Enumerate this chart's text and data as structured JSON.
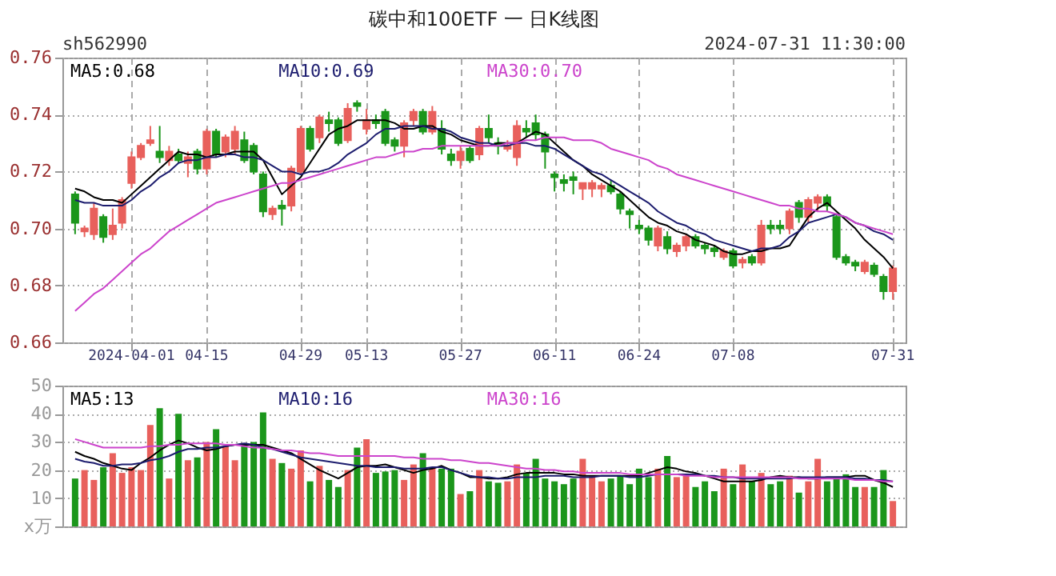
{
  "chart_data": [
    {
      "type": "candlestick",
      "title": "碳中和100ETF 一 日K线图",
      "annotations": [
        "sh562990",
        "2024-07-31 11:30:00"
      ],
      "categories": [
        null,
        null,
        null,
        null,
        null,
        null,
        "2024-04-01",
        null,
        null,
        null,
        null,
        null,
        null,
        null,
        "04-15",
        null,
        null,
        null,
        null,
        null,
        null,
        null,
        null,
        null,
        "04-29",
        null,
        null,
        null,
        null,
        null,
        null,
        "05-13",
        null,
        null,
        null,
        null,
        null,
        null,
        null,
        null,
        null,
        "05-27",
        null,
        null,
        null,
        null,
        null,
        null,
        null,
        null,
        null,
        "06-11",
        null,
        null,
        null,
        null,
        null,
        null,
        null,
        null,
        "06-24",
        null,
        null,
        null,
        null,
        null,
        null,
        null,
        null,
        null,
        "07-08",
        null,
        null,
        null,
        null,
        null,
        null,
        null,
        null,
        null,
        null,
        null,
        null,
        null,
        null,
        null,
        null,
        "07-31"
      ],
      "ohlc": [
        [
          0.712,
          0.713,
          0.698,
          0.702
        ],
        [
          0.699,
          0.701,
          0.697,
          0.7
        ],
        [
          0.698,
          0.709,
          0.696,
          0.707
        ],
        [
          0.704,
          0.705,
          0.695,
          0.697
        ],
        [
          0.698,
          0.707,
          0.696,
          0.701
        ],
        [
          0.702,
          0.711,
          0.7,
          0.71
        ],
        [
          0.716,
          0.727,
          0.714,
          0.725
        ],
        [
          0.725,
          0.73,
          0.724,
          0.729
        ],
        [
          0.73,
          0.736,
          0.729,
          0.731
        ],
        [
          0.727,
          0.736,
          0.723,
          0.725
        ],
        [
          0.724,
          0.729,
          0.722,
          0.727
        ],
        [
          0.726,
          0.728,
          0.723,
          0.724
        ],
        [
          0.723,
          0.727,
          0.718,
          0.725
        ],
        [
          0.727,
          0.728,
          0.719,
          0.721
        ],
        [
          0.721,
          0.735,
          0.719,
          0.734
        ],
        [
          0.734,
          0.735,
          0.725,
          0.726
        ],
        [
          0.727,
          0.733,
          0.725,
          0.732
        ],
        [
          0.728,
          0.736,
          0.726,
          0.734
        ],
        [
          0.731,
          0.734,
          0.723,
          0.724
        ],
        [
          0.729,
          0.73,
          0.719,
          0.72
        ],
        [
          0.719,
          0.72,
          0.704,
          0.706
        ],
        [
          0.705,
          0.708,
          0.703,
          0.707
        ],
        [
          0.708,
          0.71,
          0.701,
          0.707
        ],
        [
          0.708,
          0.722,
          0.706,
          0.721
        ],
        [
          0.72,
          0.736,
          0.719,
          0.735
        ],
        [
          0.735,
          0.736,
          0.727,
          0.728
        ],
        [
          0.732,
          0.74,
          0.73,
          0.739
        ],
        [
          0.738,
          0.741,
          0.734,
          0.737
        ],
        [
          0.738,
          0.739,
          0.729,
          0.73
        ],
        [
          0.731,
          0.744,
          0.73,
          0.742
        ],
        [
          0.744,
          0.745,
          0.741,
          0.743
        ],
        [
          0.735,
          0.742,
          0.733,
          0.738
        ],
        [
          0.738,
          0.74,
          0.735,
          0.737
        ],
        [
          0.741,
          0.742,
          0.729,
          0.73
        ],
        [
          0.731,
          0.732,
          0.727,
          0.729
        ],
        [
          0.729,
          0.738,
          0.725,
          0.737
        ],
        [
          0.738,
          0.742,
          0.736,
          0.741
        ],
        [
          0.741,
          0.742,
          0.733,
          0.734
        ],
        [
          0.734,
          0.743,
          0.733,
          0.741
        ],
        [
          0.735,
          0.738,
          0.726,
          0.728
        ],
        [
          0.726,
          0.728,
          0.722,
          0.724
        ],
        [
          0.724,
          0.729,
          0.721,
          0.727
        ],
        [
          0.728,
          0.729,
          0.723,
          0.724
        ],
        [
          0.726,
          0.736,
          0.724,
          0.735
        ],
        [
          0.735,
          0.74,
          0.73,
          0.732
        ],
        [
          0.73,
          0.732,
          0.726,
          0.729
        ],
        [
          0.728,
          0.731,
          0.727,
          0.729
        ],
        [
          0.725,
          0.738,
          0.722,
          0.736
        ],
        [
          0.735,
          0.738,
          0.732,
          0.734
        ],
        [
          0.737,
          0.74,
          0.731,
          0.733
        ],
        [
          0.733,
          0.734,
          0.721,
          0.727
        ],
        [
          0.719,
          0.72,
          0.713,
          0.718
        ],
        [
          0.717,
          0.719,
          0.713,
          0.716
        ],
        [
          0.718,
          0.72,
          0.712,
          0.717
        ],
        [
          0.714,
          0.716,
          0.71,
          0.716
        ],
        [
          0.714,
          0.717,
          0.711,
          0.716
        ],
        [
          0.714,
          0.716,
          0.711,
          0.715
        ],
        [
          0.715,
          0.717,
          0.712,
          0.713
        ],
        [
          0.712,
          0.713,
          0.705,
          0.707
        ],
        [
          0.706,
          0.707,
          0.7,
          0.705
        ],
        [
          0.701,
          0.703,
          0.698,
          0.7
        ],
        [
          0.7,
          0.701,
          0.694,
          0.696
        ],
        [
          0.694,
          0.701,
          0.692,
          0.7
        ],
        [
          0.697,
          0.699,
          0.691,
          0.693
        ],
        [
          0.692,
          0.695,
          0.69,
          0.694
        ],
        [
          0.694,
          0.698,
          0.692,
          0.697
        ],
        [
          0.697,
          0.698,
          0.693,
          0.694
        ],
        [
          0.694,
          0.695,
          0.691,
          0.693
        ],
        [
          0.693,
          0.694,
          0.69,
          0.692
        ],
        [
          0.69,
          0.693,
          0.689,
          0.692
        ],
        [
          0.692,
          0.693,
          0.686,
          0.687
        ],
        [
          0.688,
          0.69,
          0.686,
          0.689
        ],
        [
          0.69,
          0.691,
          0.687,
          0.688
        ],
        [
          0.688,
          0.703,
          0.687,
          0.701
        ],
        [
          0.701,
          0.703,
          0.698,
          0.7
        ],
        [
          0.701,
          0.703,
          0.698,
          0.7
        ],
        [
          0.7,
          0.707,
          0.698,
          0.706
        ],
        [
          0.709,
          0.71,
          0.702,
          0.704
        ],
        [
          0.704,
          0.711,
          0.702,
          0.71
        ],
        [
          0.709,
          0.712,
          0.706,
          0.711
        ],
        [
          0.711,
          0.712,
          0.706,
          0.708
        ],
        [
          0.704,
          0.705,
          0.689,
          0.69
        ],
        [
          0.69,
          0.691,
          0.687,
          0.688
        ],
        [
          0.688,
          0.689,
          0.685,
          0.687
        ],
        [
          0.685,
          0.689,
          0.684,
          0.688
        ],
        [
          0.687,
          0.688,
          0.683,
          0.684
        ],
        [
          0.683,
          0.684,
          0.675,
          0.678
        ],
        [
          0.678,
          0.687,
          0.675,
          0.686
        ]
      ],
      "colors": [
        "#1b961b",
        "#e8605c",
        "#e8605c",
        "#1b961b",
        "#e8605c",
        "#e8605c",
        "#e8605c",
        "#e8605c",
        "#e8605c",
        "#1b961b",
        "#e8605c",
        "#1b961b",
        "#e8605c",
        "#1b961b",
        "#e8605c",
        "#1b961b",
        "#e8605c",
        "#e8605c",
        "#1b961b",
        "#1b961b",
        "#1b961b",
        "#e8605c",
        "#1b961b",
        "#e8605c",
        "#e8605c",
        "#1b961b",
        "#e8605c",
        "#1b961b",
        "#1b961b",
        "#e8605c",
        "#1b961b",
        "#e8605c",
        "#1b961b",
        "#1b961b",
        "#1b961b",
        "#e8605c",
        "#e8605c",
        "#1b961b",
        "#e8605c",
        "#1b961b",
        "#1b961b",
        "#e8605c",
        "#1b961b",
        "#e8605c",
        "#1b961b",
        "#1b961b",
        "#e8605c",
        "#e8605c",
        "#1b961b",
        "#1b961b",
        "#1b961b",
        "#1b961b",
        "#1b961b",
        "#1b961b",
        "#e8605c",
        "#e8605c",
        "#e8605c",
        "#1b961b",
        "#1b961b",
        "#1b961b",
        "#1b961b",
        "#1b961b",
        "#e8605c",
        "#1b961b",
        "#e8605c",
        "#e8605c",
        "#1b961b",
        "#1b961b",
        "#1b961b",
        "#e8605c",
        "#1b961b",
        "#e8605c",
        "#1b961b",
        "#e8605c",
        "#1b961b",
        "#1b961b",
        "#e8605c",
        "#1b961b",
        "#e8605c",
        "#e8605c",
        "#1b961b",
        "#1b961b",
        "#1b961b",
        "#1b961b",
        "#e8605c",
        "#1b961b",
        "#1b961b",
        "#e8605c"
      ],
      "series": [
        {
          "name": "MA5:0.68",
          "type": "line",
          "color": "#000000",
          "values": [
            0.714,
            0.713,
            0.711,
            0.71,
            0.71,
            0.709,
            0.712,
            0.715,
            0.718,
            0.721,
            0.724,
            0.727,
            0.726,
            0.726,
            0.725,
            0.726,
            0.726,
            0.727,
            0.727,
            0.727,
            0.724,
            0.718,
            0.712,
            0.715,
            0.718,
            0.723,
            0.728,
            0.733,
            0.735,
            0.736,
            0.738,
            0.738,
            0.738,
            0.738,
            0.737,
            0.735,
            0.735,
            0.736,
            0.736,
            0.734,
            0.733,
            0.731,
            0.73,
            0.729,
            0.729,
            0.73,
            0.73,
            0.73,
            0.732,
            0.734,
            0.733,
            0.73,
            0.727,
            0.724,
            0.722,
            0.719,
            0.717,
            0.715,
            0.713,
            0.71,
            0.707,
            0.704,
            0.702,
            0.701,
            0.699,
            0.698,
            0.696,
            0.695,
            0.694,
            0.692,
            0.691,
            0.691,
            0.692,
            0.692,
            0.693,
            0.693,
            0.694,
            0.699,
            0.704,
            0.707,
            0.709,
            0.706,
            0.703,
            0.7,
            0.696,
            0.693,
            0.69,
            0.686
          ]
        },
        {
          "name": "MA10:0.69",
          "type": "line",
          "color": "#1c1c6e",
          "values": [
            0.71,
            0.709,
            0.709,
            0.708,
            0.708,
            0.708,
            0.71,
            0.713,
            0.715,
            0.718,
            0.72,
            0.723,
            0.724,
            0.724,
            0.725,
            0.725,
            0.726,
            0.726,
            0.725,
            0.725,
            0.724,
            0.722,
            0.72,
            0.72,
            0.719,
            0.72,
            0.72,
            0.721,
            0.723,
            0.726,
            0.728,
            0.73,
            0.733,
            0.735,
            0.735,
            0.736,
            0.736,
            0.736,
            0.735,
            0.735,
            0.734,
            0.732,
            0.731,
            0.73,
            0.73,
            0.729,
            0.729,
            0.73,
            0.73,
            0.729,
            0.729,
            0.728,
            0.726,
            0.724,
            0.722,
            0.72,
            0.719,
            0.717,
            0.715,
            0.713,
            0.711,
            0.709,
            0.706,
            0.704,
            0.702,
            0.701,
            0.699,
            0.698,
            0.696,
            0.695,
            0.694,
            0.693,
            0.692,
            0.693,
            0.693,
            0.694,
            0.697,
            0.699,
            0.702,
            0.703,
            0.704,
            0.705,
            0.704,
            0.702,
            0.701,
            0.699,
            0.698,
            0.696
          ]
        },
        {
          "name": "MA30:0.70",
          "type": "line",
          "color": "#cc44cc",
          "values": [
            0.671,
            0.674,
            0.677,
            0.679,
            0.682,
            0.685,
            0.688,
            0.691,
            0.693,
            0.696,
            0.699,
            0.701,
            0.703,
            0.705,
            0.707,
            0.709,
            0.71,
            0.711,
            0.712,
            0.713,
            0.714,
            0.715,
            0.716,
            0.716,
            0.717,
            0.718,
            0.719,
            0.72,
            0.721,
            0.722,
            0.723,
            0.724,
            0.725,
            0.725,
            0.726,
            0.727,
            0.727,
            0.728,
            0.728,
            0.729,
            0.729,
            0.729,
            0.729,
            0.729,
            0.729,
            0.729,
            0.73,
            0.73,
            0.731,
            0.731,
            0.732,
            0.732,
            0.732,
            0.731,
            0.731,
            0.731,
            0.73,
            0.728,
            0.727,
            0.726,
            0.725,
            0.724,
            0.722,
            0.721,
            0.719,
            0.718,
            0.717,
            0.716,
            0.715,
            0.714,
            0.713,
            0.712,
            0.711,
            0.71,
            0.709,
            0.708,
            0.708,
            0.707,
            0.707,
            0.706,
            0.706,
            0.705,
            0.704,
            0.702,
            0.701,
            0.7,
            0.699,
            0.698
          ]
        }
      ],
      "ylim": [
        0.66,
        0.76
      ],
      "yticks": [
        {
          "value": 0.66,
          "label": "0.66"
        },
        {
          "value": 0.68,
          "label": "0.68"
        },
        {
          "value": 0.7,
          "label": "0.70"
        },
        {
          "value": 0.72,
          "label": "0.72"
        },
        {
          "value": 0.74,
          "label": "0.74"
        },
        {
          "value": 0.76,
          "label": "0.76"
        }
      ],
      "grid": true,
      "legend": "top left"
    },
    {
      "type": "bar",
      "categories": [
        null,
        null,
        null,
        null,
        null,
        null,
        null,
        null,
        null,
        null,
        null,
        null,
        null,
        null,
        null,
        null,
        null,
        null,
        null,
        null,
        null,
        null,
        null,
        null,
        null,
        null,
        null,
        null,
        null,
        null,
        null,
        null,
        null,
        null,
        null,
        null,
        null,
        null,
        null,
        null,
        null,
        null,
        null,
        null,
        null,
        null,
        null,
        null,
        null,
        null,
        null,
        null,
        null,
        null,
        null,
        null,
        null,
        null,
        null,
        null,
        null,
        null,
        null,
        null,
        null,
        null,
        null,
        null,
        null,
        null,
        null,
        null,
        null,
        null,
        null,
        null,
        null,
        null,
        null,
        null,
        null,
        null,
        null,
        null,
        null,
        null,
        null,
        null
      ],
      "series": [
        {
          "type": "bar",
          "colors": [
            "#1b961b",
            "#e8605c",
            "#e8605c",
            "#1b961b",
            "#e8605c",
            "#e8605c",
            "#e8605c",
            "#e8605c",
            "#e8605c",
            "#1b961b",
            "#e8605c",
            "#1b961b",
            "#e8605c",
            "#1b961b",
            "#e8605c",
            "#1b961b",
            "#e8605c",
            "#e8605c",
            "#1b961b",
            "#1b961b",
            "#1b961b",
            "#e8605c",
            "#1b961b",
            "#e8605c",
            "#e8605c",
            "#1b961b",
            "#e8605c",
            "#1b961b",
            "#1b961b",
            "#e8605c",
            "#1b961b",
            "#e8605c",
            "#1b961b",
            "#1b961b",
            "#1b961b",
            "#e8605c",
            "#e8605c",
            "#1b961b",
            "#e8605c",
            "#1b961b",
            "#1b961b",
            "#e8605c",
            "#1b961b",
            "#e8605c",
            "#1b961b",
            "#1b961b",
            "#e8605c",
            "#e8605c",
            "#1b961b",
            "#1b961b",
            "#1b961b",
            "#1b961b",
            "#1b961b",
            "#1b961b",
            "#e8605c",
            "#e8605c",
            "#e8605c",
            "#1b961b",
            "#1b961b",
            "#1b961b",
            "#1b961b",
            "#1b961b",
            "#e8605c",
            "#1b961b",
            "#e8605c",
            "#e8605c",
            "#1b961b",
            "#1b961b",
            "#1b961b",
            "#e8605c",
            "#1b961b",
            "#e8605c",
            "#1b961b",
            "#e8605c",
            "#1b961b",
            "#1b961b",
            "#e8605c",
            "#1b961b",
            "#e8605c",
            "#e8605c",
            "#1b961b",
            "#1b961b",
            "#1b961b",
            "#1b961b",
            "#e8605c",
            "#1b961b",
            "#1b961b",
            "#e8605c"
          ],
          "values": [
            17,
            20,
            16.5,
            21,
            26,
            19,
            21,
            20,
            36,
            42,
            17,
            40,
            23.5,
            24.5,
            30,
            34.5,
            28.5,
            23.5,
            29,
            30,
            40.5,
            24,
            22.5,
            20.5,
            27,
            16,
            21.5,
            16.5,
            14,
            20,
            28,
            31,
            19,
            19.5,
            20,
            16.5,
            22,
            26,
            21,
            20.5,
            20.5,
            11.5,
            12.5,
            20,
            16,
            15.5,
            16,
            22,
            19,
            24,
            17,
            16,
            15,
            17,
            24,
            18,
            16,
            17,
            18,
            15,
            20.5,
            17.5,
            20.5,
            25,
            17.5,
            18.5,
            14,
            16,
            12.5,
            20.5,
            15,
            22,
            16,
            19,
            15,
            16,
            18,
            12,
            16,
            24,
            16,
            17.5,
            18.5,
            14,
            14,
            14,
            20,
            9
          ]
        },
        {
          "name": "MA5:13",
          "type": "line",
          "color": "#000000",
          "values": [
            26.5,
            25,
            24,
            22.5,
            21.5,
            20.5,
            20,
            22.5,
            24.5,
            27,
            29,
            30.5,
            29.5,
            28,
            27,
            27.5,
            28.5,
            29,
            29,
            29,
            29,
            28,
            27,
            26,
            24,
            22,
            20,
            18.5,
            17,
            19,
            21,
            21.5,
            21.5,
            22,
            21,
            20,
            19,
            20,
            20.5,
            21.5,
            20,
            19,
            17.5,
            17.5,
            17,
            17,
            17.5,
            18.5,
            19,
            19,
            19,
            19,
            18.5,
            18.5,
            18,
            18,
            18,
            18,
            18,
            18,
            18,
            19,
            20,
            21,
            20.5,
            19.5,
            19,
            18,
            17,
            16,
            16,
            16,
            16,
            16.5,
            17.5,
            18,
            17.5,
            17.5,
            17,
            17,
            17.5,
            17.5,
            17.5,
            18,
            18,
            16.5,
            15.5,
            14
          ]
        },
        {
          "name": "MA10:16",
          "type": "line",
          "color": "#1c1c6e",
          "values": [
            24,
            23,
            22.5,
            21.5,
            21.5,
            22,
            22,
            22.5,
            23.5,
            24,
            25,
            26.5,
            27.5,
            27.5,
            28,
            28,
            28.5,
            29,
            29.5,
            29,
            28,
            27.5,
            26.5,
            25.5,
            24.5,
            24,
            23.5,
            23,
            22.5,
            22,
            21.5,
            21.5,
            21,
            21,
            21,
            20.5,
            20.5,
            20.5,
            21,
            21,
            20,
            19,
            18,
            17.5,
            17.5,
            17,
            17,
            17.5,
            17.5,
            17.5,
            18,
            18,
            18,
            17.5,
            17.5,
            17.5,
            18,
            18,
            18,
            17.5,
            17.5,
            18,
            18.5,
            18.5,
            18.5,
            18.5,
            18.5,
            18,
            18,
            17.5,
            17.5,
            17,
            17,
            17,
            17,
            17,
            17,
            17.5,
            17.5,
            17.5,
            17.5,
            17.5,
            17.5,
            17,
            17,
            16.5,
            16.5,
            16
          ]
        },
        {
          "name": "MA30:16",
          "type": "line",
          "color": "#cc44cc",
          "values": [
            31,
            30,
            29,
            28,
            28,
            28,
            28,
            28,
            28.5,
            28.5,
            29,
            29,
            29.5,
            29.5,
            29.5,
            29.5,
            29,
            29,
            28.5,
            28,
            28,
            27.5,
            27,
            27,
            26.5,
            26,
            26,
            25.5,
            25,
            25,
            25,
            25,
            25,
            25,
            25,
            24.5,
            24.5,
            24,
            24,
            24,
            23.5,
            23.5,
            23,
            22.5,
            22.5,
            22,
            21.5,
            21,
            20.5,
            20.5,
            20,
            20,
            19.5,
            19.5,
            19,
            19,
            19,
            19,
            19,
            18.5,
            18.5,
            18.5,
            18.5,
            18.5,
            18.5,
            18,
            18,
            18,
            17.5,
            17.5,
            17.5,
            17.5,
            17.5,
            17.5,
            17.5,
            17.5,
            17.5,
            17,
            17,
            17,
            17,
            17,
            17,
            16.5,
            16.5,
            16.5,
            16,
            16
          ]
        }
      ],
      "ylim": [
        0,
        50
      ],
      "yticks": [
        {
          "value": 0,
          "label": "x万"
        },
        10,
        20,
        30,
        40,
        50
      ],
      "tick_labels": "y",
      "grid": "y",
      "legend": "top left"
    }
  ]
}
